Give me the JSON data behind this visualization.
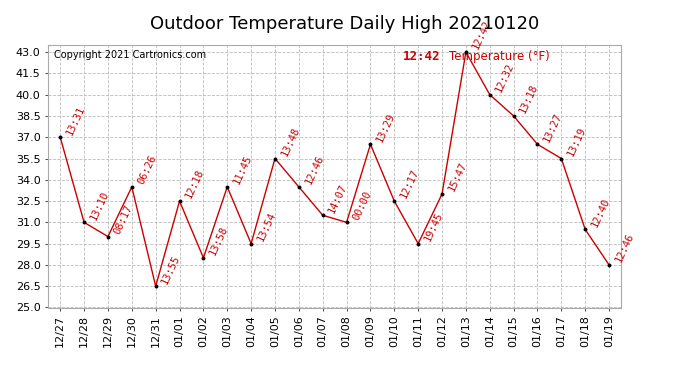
{
  "title": "Outdoor Temperature Daily High 20210120",
  "ylabel": "Temperature (°F)",
  "copyright": "Copyright 2021 Cartronics.com",
  "background_color": "#ffffff",
  "line_color": "#cc0000",
  "marker_color": "#000000",
  "x_labels": [
    "12/27",
    "12/28",
    "12/29",
    "12/30",
    "12/31",
    "01/01",
    "01/02",
    "01/03",
    "01/04",
    "01/05",
    "01/06",
    "01/07",
    "01/08",
    "01/09",
    "01/10",
    "01/11",
    "01/12",
    "01/13",
    "01/14",
    "01/15",
    "01/16",
    "01/17",
    "01/18",
    "01/19"
  ],
  "y_values": [
    37.0,
    31.0,
    30.0,
    33.5,
    26.5,
    32.5,
    28.5,
    33.5,
    29.5,
    35.5,
    33.5,
    31.5,
    31.0,
    36.5,
    32.5,
    29.5,
    33.0,
    43.0,
    40.0,
    38.5,
    36.5,
    35.5,
    30.5,
    28.0
  ],
  "annotations": [
    "13:31",
    "13:10",
    "08:17",
    "06:26",
    "13:55",
    "12:18",
    "13:58",
    "11:45",
    "13:54",
    "13:48",
    "12:46",
    "14:07",
    "00:00",
    "13:29",
    "12:17",
    "19:45",
    "15:47",
    "12:42",
    "12:32",
    "13:18",
    "13:27",
    "13:19",
    "12:40",
    "12:46"
  ],
  "ylim": [
    25.0,
    43.5
  ],
  "yticks": [
    25.0,
    26.5,
    28.0,
    29.5,
    31.0,
    32.5,
    34.0,
    35.5,
    37.0,
    38.5,
    40.0,
    41.5,
    43.0
  ],
  "grid_color": "#bbbbbb",
  "title_fontsize": 13,
  "annotation_fontsize": 7.5,
  "annotation_color": "#cc0000",
  "annotation_rotation": 65,
  "legend_time": "12:42",
  "legend_label": "Temperature (°F)",
  "legend_color": "#cc0000",
  "copyright_fontsize": 7,
  "tick_fontsize": 8
}
